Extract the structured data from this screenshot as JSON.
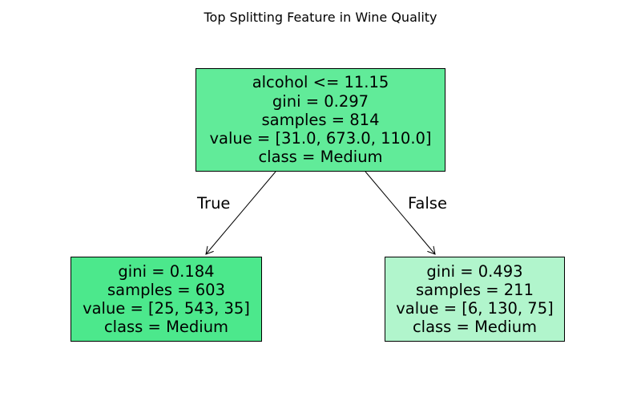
{
  "title": "Top Splitting Feature in Wine Quality",
  "nodes": {
    "root": {
      "split": "alcohol <= 11.15",
      "gini": "gini = 0.297",
      "samples": "samples = 814",
      "value": "value = [31.0, 673.0, 110.0]",
      "class": "class = Medium",
      "fill": "#61eb99"
    },
    "left": {
      "gini": "gini = 0.184",
      "samples": "samples = 603",
      "value": "value = [25, 543, 35]",
      "class": "class = Medium",
      "fill": "#4ce88c"
    },
    "right": {
      "gini": "gini = 0.493",
      "samples": "samples = 211",
      "value": "value = [6, 130, 75]",
      "class": "class = Medium",
      "fill": "#b1f5cc"
    }
  },
  "edges": {
    "true_label": "True",
    "false_label": "False"
  }
}
